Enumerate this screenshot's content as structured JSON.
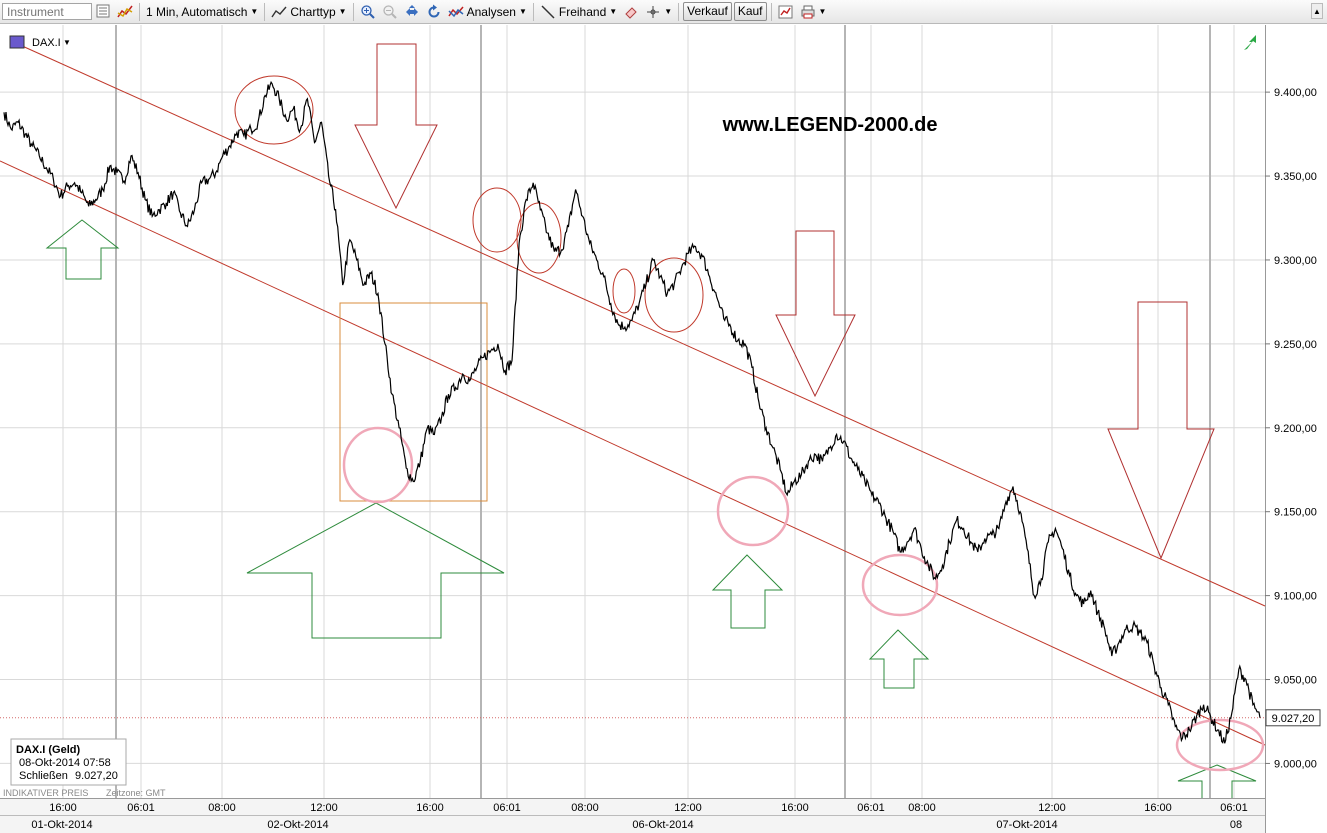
{
  "toolbar": {
    "instrument_placeholder": "Instrument",
    "interval_label": "1 Min,  Automatisch",
    "charttype_label": "Charttyp",
    "analyses_label": "Analysen",
    "freehand_label": "Freihand",
    "sell_label": "Verkauf",
    "buy_label": "Kauf"
  },
  "chart": {
    "symbol": "DAX.I",
    "watermark": "www.LEGEND-2000.de",
    "footer_left": "INDIKATIVER PREIS",
    "timezone": "Zeitzone: GMT",
    "info_box": {
      "title": "DAX.I (Geld)",
      "datetime": "08-Okt-2014 07:58",
      "close_label": "Schließen",
      "close_value": "9.027,20"
    },
    "last_price_tag": "9.027,20",
    "last_price": 9027.2
  },
  "colors": {
    "price_line": "#000000",
    "trend_channel": "#c0392b",
    "down_arrows": "#b03030",
    "up_arrows": "#2e8b3c",
    "highlight_circles_red": "#c0392b",
    "highlight_circles_pink": "#f0a8b8",
    "box": "#d98c3c",
    "grid": "#d9d9d9"
  },
  "chart_data": {
    "type": "line",
    "ylim": [
      8980,
      9440
    ],
    "y_ticks": [
      9000,
      9050,
      9100,
      9150,
      9200,
      9250,
      9300,
      9350,
      9400
    ],
    "y_tick_labels": [
      "9.000,00",
      "9.050,00",
      "9.100,00",
      "9.150,00",
      "9.200,00",
      "9.250,00",
      "9.300,00",
      "9.350,00",
      "9.400,00"
    ],
    "time_labels": [
      "16:00",
      "06:01",
      "08:00",
      "12:00",
      "16:00",
      "06:01",
      "08:00",
      "12:00",
      "16:00",
      "06:01",
      "08:00",
      "12:00",
      "16:00",
      "06:01"
    ],
    "date_labels": [
      "01-Okt-2014",
      "02-Okt-2014",
      "06-Okt-2014",
      "07-Okt-2014",
      "08"
    ],
    "series": [
      {
        "values": [
          9388,
          9378,
          9382,
          9375,
          9368,
          9362,
          9355,
          9348,
          9338,
          9344,
          9346,
          9340,
          9332,
          9336,
          9342,
          9356,
          9352,
          9347,
          9362,
          9352,
          9336,
          9326,
          9330,
          9334,
          9340,
          9328,
          9320,
          9330,
          9346,
          9348,
          9352,
          9362,
          9368,
          9376,
          9374,
          9378,
          9382,
          9398,
          9405,
          9396,
          9384,
          9390,
          9378,
          9396,
          9370,
          9382,
          9350,
          9330,
          9285,
          9312,
          9300,
          9285,
          9292,
          9280,
          9250,
          9220,
          9200,
          9176,
          9168,
          9180,
          9200,
          9196,
          9206,
          9220,
          9224,
          9232,
          9228,
          9236,
          9242,
          9246,
          9250,
          9234,
          9240,
          9310,
          9336,
          9346,
          9330,
          9316,
          9305,
          9306,
          9320,
          9342,
          9326,
          9310,
          9300,
          9290,
          9274,
          9262,
          9260,
          9264,
          9274,
          9286,
          9300,
          9290,
          9280,
          9286,
          9295,
          9304,
          9308,
          9302,
          9290,
          9278,
          9265,
          9260,
          9252,
          9250,
          9236,
          9215,
          9200,
          9188,
          9175,
          9160,
          9168,
          9172,
          9180,
          9184,
          9180,
          9188,
          9196,
          9192,
          9182,
          9175,
          9168,
          9160,
          9155,
          9146,
          9138,
          9126,
          9132,
          9140,
          9128,
          9118,
          9110,
          9118,
          9132,
          9145,
          9140,
          9132,
          9126,
          9134,
          9136,
          9140,
          9156,
          9165,
          9150,
          9128,
          9100,
          9110,
          9132,
          9140,
          9128,
          9112,
          9100,
          9095,
          9103,
          9090,
          9080,
          9064,
          9072,
          9080,
          9082,
          9078,
          9072,
          9058,
          9045,
          9035,
          9022,
          9015,
          9020,
          9028,
          9035,
          9028,
          9020,
          9012,
          9030,
          9056,
          9050,
          9035,
          9027.2
        ]
      }
    ]
  }
}
